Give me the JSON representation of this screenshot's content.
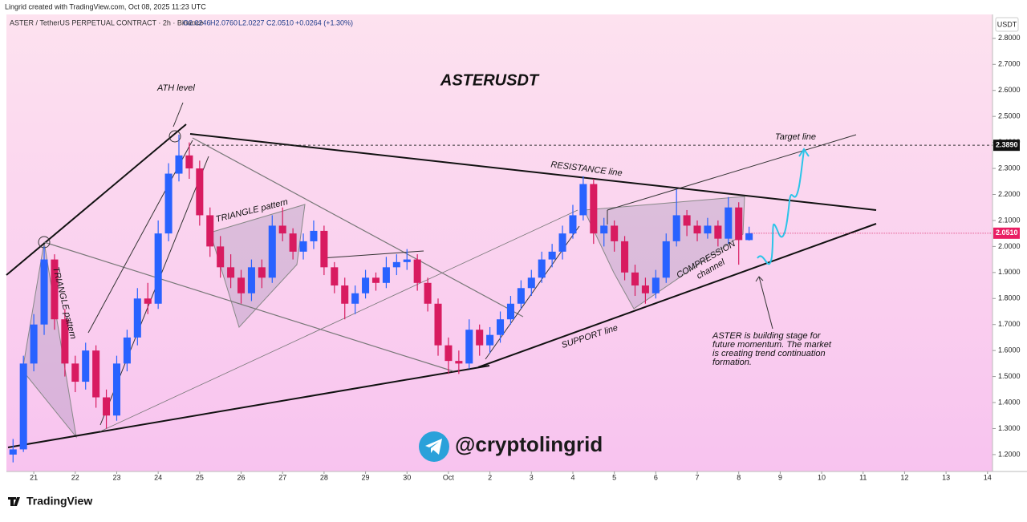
{
  "header": {
    "credit": "Lingrid created with TradingView.com, Oct 08, 2025 11:23 UTC",
    "symbol": "ASTER / TetherUS PERPETUAL CONTRACT · 2h · Binance",
    "ohlc": [
      "O2.0246",
      "H2.0760",
      "L2.0227",
      "C2.0510"
    ],
    "change": "+0.0264 (+1.30%)"
  },
  "chart_data": {
    "type": "candlestick",
    "title": "ASTERUSDT",
    "y_unit": "USDT",
    "up_color": "#2962ff",
    "down_color": "#d81b60",
    "grid": false,
    "x": [
      -0.5,
      -0.25,
      0,
      0.25,
      0.5,
      0.75,
      1,
      1.25,
      1.5,
      1.75,
      2,
      2.25,
      2.5,
      2.75,
      3,
      3.25,
      3.5,
      3.75,
      4,
      4.25,
      4.5,
      4.75,
      5,
      5.25,
      5.5,
      5.75,
      6,
      6.25,
      6.5,
      6.75,
      7,
      7.25,
      7.5,
      7.75,
      8,
      8.25,
      8.5,
      8.75,
      9,
      9.25,
      9.5,
      9.75,
      10,
      10.25,
      10.5,
      10.75,
      11,
      11.25,
      11.5,
      11.75,
      12,
      12.25,
      12.5,
      12.75,
      13,
      13.25,
      13.5,
      13.75,
      14,
      14.25,
      14.5,
      14.75,
      15,
      15.25,
      15.5,
      15.75,
      16,
      16.25,
      16.5,
      16.75,
      17,
      17.25
    ],
    "open": [
      1.2,
      1.22,
      1.55,
      1.7,
      1.95,
      1.72,
      1.55,
      1.48,
      1.6,
      1.42,
      1.35,
      1.55,
      1.65,
      1.8,
      1.78,
      2.05,
      2.28,
      2.35,
      2.3,
      2.12,
      2.0,
      1.92,
      1.88,
      1.82,
      1.92,
      1.88,
      2.08,
      2.05,
      1.98,
      2.02,
      2.06,
      1.92,
      1.85,
      1.78,
      1.82,
      1.88,
      1.86,
      1.92,
      1.94,
      1.95,
      1.86,
      1.78,
      1.62,
      1.56,
      1.55,
      1.68,
      1.62,
      1.66,
      1.72,
      1.78,
      1.84,
      1.88,
      1.95,
      1.98,
      2.05,
      2.12,
      2.24,
      2.05,
      2.08,
      2.02,
      1.9,
      1.85,
      1.82,
      1.88,
      2.02,
      2.12,
      2.08,
      2.05,
      2.08,
      2.03,
      2.15,
      2.0246
    ],
    "high": [
      1.26,
      1.58,
      1.74,
      2.0,
      1.97,
      1.76,
      1.58,
      1.63,
      1.62,
      1.45,
      1.58,
      1.68,
      1.84,
      1.86,
      2.1,
      2.32,
      2.43,
      2.4,
      2.33,
      2.15,
      2.04,
      1.97,
      1.91,
      1.95,
      1.95,
      2.12,
      2.15,
      2.07,
      2.05,
      2.1,
      2.08,
      1.94,
      1.88,
      1.85,
      1.91,
      1.9,
      1.96,
      1.97,
      1.99,
      1.97,
      1.88,
      1.8,
      1.65,
      1.6,
      1.72,
      1.7,
      1.69,
      1.75,
      1.81,
      1.87,
      1.91,
      1.98,
      2.01,
      2.08,
      2.16,
      2.27,
      2.26,
      2.11,
      2.1,
      2.04,
      1.93,
      1.88,
      1.91,
      2.05,
      2.22,
      2.14,
      2.1,
      2.11,
      2.1,
      2.19,
      2.17,
      2.076
    ],
    "low": [
      1.17,
      1.21,
      1.52,
      1.66,
      1.68,
      1.5,
      1.44,
      1.45,
      1.38,
      1.3,
      1.33,
      1.52,
      1.62,
      1.74,
      1.76,
      2.02,
      2.25,
      2.26,
      2.08,
      1.96,
      1.88,
      1.84,
      1.78,
      1.79,
      1.84,
      1.86,
      2.02,
      1.95,
      1.95,
      1.99,
      1.89,
      1.82,
      1.72,
      1.74,
      1.8,
      1.83,
      1.84,
      1.89,
      1.91,
      1.83,
      1.75,
      1.58,
      1.51,
      1.51,
      1.53,
      1.58,
      1.59,
      1.63,
      1.7,
      1.76,
      1.81,
      1.86,
      1.92,
      1.95,
      2.03,
      2.1,
      2.01,
      2.0,
      1.98,
      1.87,
      1.81,
      1.78,
      1.8,
      1.86,
      2.0,
      2.04,
      2.02,
      2.03,
      2.0,
      2.01,
      1.93,
      2.0227
    ],
    "close": [
      1.22,
      1.55,
      1.7,
      1.95,
      1.72,
      1.55,
      1.48,
      1.6,
      1.42,
      1.35,
      1.55,
      1.65,
      1.8,
      1.78,
      2.05,
      2.28,
      2.35,
      2.3,
      2.12,
      2.0,
      1.92,
      1.88,
      1.82,
      1.92,
      1.88,
      2.08,
      2.05,
      1.98,
      2.02,
      2.06,
      1.92,
      1.85,
      1.78,
      1.82,
      1.88,
      1.86,
      1.92,
      1.94,
      1.95,
      1.86,
      1.78,
      1.62,
      1.56,
      1.55,
      1.68,
      1.62,
      1.66,
      1.72,
      1.78,
      1.84,
      1.88,
      1.95,
      1.98,
      2.05,
      2.12,
      2.24,
      2.05,
      2.08,
      2.02,
      1.9,
      1.85,
      1.82,
      1.88,
      2.02,
      2.12,
      2.08,
      2.05,
      2.08,
      2.03,
      2.15,
      2.0246,
      2.051
    ],
    "xlim": [
      -0.66,
      23.12
    ],
    "ylim": [
      1.135,
      2.892
    ],
    "xticks": [
      {
        "value": 0,
        "label": "21"
      },
      {
        "value": 1,
        "label": "22"
      },
      {
        "value": 2,
        "label": "23"
      },
      {
        "value": 3,
        "label": "24"
      },
      {
        "value": 4,
        "label": "25"
      },
      {
        "value": 5,
        "label": "26"
      },
      {
        "value": 6,
        "label": "27"
      },
      {
        "value": 7,
        "label": "28"
      },
      {
        "value": 8,
        "label": "29"
      },
      {
        "value": 9,
        "label": "30"
      },
      {
        "value": 10,
        "label": "Oct"
      },
      {
        "value": 11,
        "label": "2"
      },
      {
        "value": 12,
        "label": "3"
      },
      {
        "value": 13,
        "label": "4"
      },
      {
        "value": 14,
        "label": "5"
      },
      {
        "value": 15,
        "label": "6"
      },
      {
        "value": 16,
        "label": "7"
      },
      {
        "value": 17,
        "label": "8"
      },
      {
        "value": 18,
        "label": "9"
      },
      {
        "value": 19,
        "label": "10"
      },
      {
        "value": 20,
        "label": "11"
      },
      {
        "value": 21,
        "label": "12"
      },
      {
        "value": 22,
        "label": "13"
      },
      {
        "value": 23,
        "label": "14"
      }
    ],
    "yticks": [
      {
        "value": 1.2,
        "label": "1.2000"
      },
      {
        "value": 1.3,
        "label": "1.3000"
      },
      {
        "value": 1.4,
        "label": "1.4000"
      },
      {
        "value": 1.5,
        "label": "1.5000"
      },
      {
        "value": 1.6,
        "label": "1.6000"
      },
      {
        "value": 1.7,
        "label": "1.7000"
      },
      {
        "value": 1.8,
        "label": "1.8000"
      },
      {
        "value": 1.9,
        "label": "1.9000"
      },
      {
        "value": 2.0,
        "label": "2.0000"
      },
      {
        "value": 2.1,
        "label": "2.1000"
      },
      {
        "value": 2.2,
        "label": "2.2000"
      },
      {
        "value": 2.3,
        "label": "2.3000"
      },
      {
        "value": 2.4,
        "label": "2.4000"
      },
      {
        "value": 2.5,
        "label": "2.5000"
      },
      {
        "value": 2.6,
        "label": "2.6000"
      },
      {
        "value": 2.7,
        "label": "2.7000"
      },
      {
        "value": 2.8,
        "label": "2.8000"
      }
    ],
    "target_price": {
      "value": 2.389,
      "label": "2.3890"
    },
    "last_price": {
      "value": 2.051,
      "label": "2.0510"
    },
    "annotations": {
      "ath": "ATH level",
      "triangle_left": "TRIANGLE pattern",
      "triangle_mid": "TRIANGLE pattern",
      "resistance": "RESISTANCE line",
      "support": "SUPPORT line",
      "target": "Target line",
      "compression": [
        "COMPRESSION",
        "channel"
      ],
      "note": [
        "ASTER is building stage for",
        "future momentum. The market",
        "is creating trend continuation",
        "formation."
      ]
    }
  },
  "watermark": "@cryptolingrid",
  "footer": "TradingView"
}
